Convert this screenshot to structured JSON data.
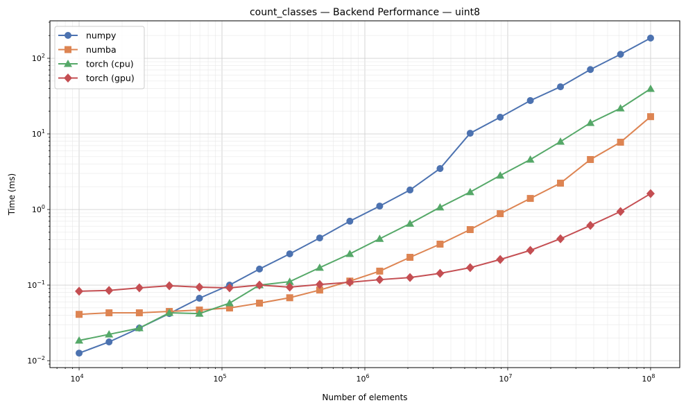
{
  "chart_data": {
    "type": "line",
    "title": "count_classes — Backend Performance — uint8",
    "xlabel": "Number of elements",
    "ylabel": "Time (ms)",
    "xscale": "log",
    "yscale": "log",
    "xlim": [
      6250,
      160000000
    ],
    "ylim": [
      0.0081,
      313
    ],
    "grid": "on (major and minor)",
    "legend_placement": "top-left",
    "x_ticks": [
      {
        "v": 10000.0,
        "b": "10",
        "e": "4"
      },
      {
        "v": 100000.0,
        "b": "10",
        "e": "5"
      },
      {
        "v": 1000000.0,
        "b": "10",
        "e": "6"
      },
      {
        "v": 10000000.0,
        "b": "10",
        "e": "7"
      },
      {
        "v": 100000000.0,
        "b": "10",
        "e": "8"
      }
    ],
    "y_ticks": [
      {
        "v": 0.01,
        "b": "10",
        "e": "−2"
      },
      {
        "v": 0.1,
        "b": "10",
        "e": "−1"
      },
      {
        "v": 1,
        "b": "10",
        "e": "0"
      },
      {
        "v": 10,
        "b": "10",
        "e": "1"
      },
      {
        "v": 100,
        "b": "10",
        "e": "2"
      }
    ],
    "x": [
      10000,
      16200,
      26400,
      42800,
      69500,
      113000,
      183000,
      298000,
      483000,
      785000,
      1270000,
      2070000,
      3360000,
      5460000,
      8860000,
      14400000,
      23400000,
      37900000,
      61600000,
      100000000
    ],
    "series": [
      {
        "name": "numpy",
        "color": "#4c72b0",
        "marker": "circle",
        "values": [
          0.0126,
          0.0177,
          0.027,
          0.042,
          0.067,
          0.1,
          0.163,
          0.259,
          0.42,
          0.7,
          1.11,
          1.81,
          3.48,
          10.2,
          16.6,
          27.6,
          42,
          71,
          113,
          185
        ]
      },
      {
        "name": "numba",
        "color": "#dd8452",
        "marker": "square",
        "values": [
          0.041,
          0.043,
          0.043,
          0.0448,
          0.0468,
          0.0498,
          0.0577,
          0.068,
          0.086,
          0.113,
          0.153,
          0.233,
          0.348,
          0.542,
          0.88,
          1.4,
          2.23,
          4.58,
          7.76,
          16.9
        ]
      },
      {
        "name": "torch (cpu)",
        "color": "#55a868",
        "marker": "triangle",
        "values": [
          0.0185,
          0.0223,
          0.027,
          0.043,
          0.042,
          0.0577,
          0.1,
          0.111,
          0.17,
          0.259,
          0.41,
          0.65,
          1.07,
          1.7,
          2.82,
          4.58,
          7.9,
          14.0,
          21.8,
          39.5
        ]
      },
      {
        "name": "torch (gpu)",
        "color": "#c44e52",
        "marker": "diamond",
        "values": [
          0.083,
          0.085,
          0.092,
          0.098,
          0.094,
          0.092,
          0.1,
          0.094,
          0.102,
          0.109,
          0.118,
          0.126,
          0.143,
          0.17,
          0.218,
          0.288,
          0.41,
          0.615,
          0.94,
          1.62
        ]
      }
    ]
  }
}
